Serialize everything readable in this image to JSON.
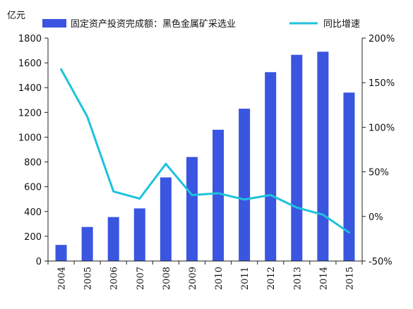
{
  "chart_data": {
    "type": "bar",
    "categories": [
      "2004",
      "2005",
      "2006",
      "2007",
      "2008",
      "2009",
      "2010",
      "2011",
      "2012",
      "2013",
      "2014",
      "2015"
    ],
    "y_unit_label": "亿元",
    "ylim": [
      0,
      1800
    ],
    "y_ticks": [
      0,
      200,
      400,
      600,
      800,
      1000,
      1200,
      1400,
      1600,
      1800
    ],
    "y_tick_labels": [
      "0",
      "200",
      "400",
      "600",
      "800",
      "1000",
      "1200",
      "1400",
      "1600",
      "1800"
    ],
    "y2lim": [
      -50,
      200
    ],
    "y2_ticks": [
      -50,
      0,
      50,
      100,
      150,
      200
    ],
    "y2_tick_labels": [
      "-50%",
      "0%",
      "50%",
      "100%",
      "150%",
      "200%"
    ],
    "grid": false,
    "legend_position": "top",
    "series": [
      {
        "name": "固定资产投资完成额：黑色金属矿采选业",
        "type": "bar",
        "axis": "left",
        "color": "#3a55e0",
        "values": [
          130,
          275,
          355,
          425,
          675,
          840,
          1060,
          1230,
          1525,
          1665,
          1690,
          1360
        ]
      },
      {
        "name": "同比增速",
        "type": "line",
        "axis": "right",
        "color": "#1ec2dc",
        "values": [
          165,
          112,
          28,
          20,
          59,
          24,
          26,
          19,
          24,
          10,
          2,
          -18
        ]
      }
    ]
  }
}
